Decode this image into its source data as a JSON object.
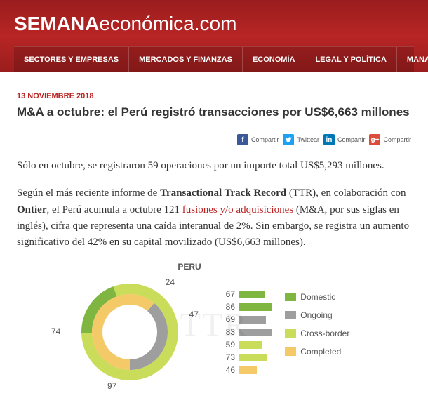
{
  "site": {
    "title_bold": "SEMANA",
    "title_light": "económica.com"
  },
  "nav": [
    "SECTORES Y EMPRESAS",
    "MERCADOS Y FINANZAS",
    "ECONOMÍA",
    "LEGAL Y POLÍTICA",
    "MANAGEMEN"
  ],
  "article": {
    "date": "13 NOVIEMBRE 2018",
    "headline": "M&A a octubre: el Perú registró transacciones por US$6,663 millones",
    "share": {
      "fb": "Compartir",
      "tw": "Twittear",
      "li": "Compartir",
      "gp": "Compartir"
    },
    "p1": "Sólo en octubre, se registraron 59 operaciones por un importe total US$5,293 millones.",
    "p2_a": "Según el más reciente informe de ",
    "p2_b": "Transactional Track Record",
    "p2_c": " (TTR), en colaboración con ",
    "p2_d": "Ontier",
    "p2_e": ", el Perú acumula a octubre 121 ",
    "p2_f": "fusiones y/o adquisiciones",
    "p2_g": " (M&A, por sus siglas en inglés), cifra que representa una caída interanual de 2%. Sin embargo, se registra un aumento significativo del 42% en su capital movilizado (US$6,663 millones)."
  },
  "chart": {
    "title": "PERU",
    "type": "donut",
    "watermark": "TTR",
    "colors": {
      "domestic": "#7fb642",
      "ongoing": "#9e9e9e",
      "crossborder": "#c9dd5a",
      "completed": "#f4c968",
      "bg": "#ffffff"
    },
    "outer_segments": [
      {
        "value": 97,
        "color": "#c9dd5a"
      },
      {
        "value": 24,
        "color": "#7fb642"
      }
    ],
    "inner_segments": [
      {
        "value": 74,
        "color": "#f4c968"
      },
      {
        "value": 47,
        "color": "#9e9e9e"
      }
    ],
    "callouts": {
      "tr": "24",
      "r": "47",
      "bl": "97",
      "l": "74"
    },
    "bars": [
      {
        "v": 67,
        "color": "#7fb642"
      },
      {
        "v": 86,
        "color": "#7fb642"
      },
      {
        "v": 69,
        "color": "#9e9e9e"
      },
      {
        "v": 83,
        "color": "#9e9e9e"
      },
      {
        "v": 59,
        "color": "#c9dd5a"
      },
      {
        "v": 73,
        "color": "#c9dd5a"
      },
      {
        "v": 46,
        "color": "#f4c968"
      }
    ],
    "bar_scale": 0.55,
    "legend": [
      {
        "label": "Domestic",
        "color": "#7fb642"
      },
      {
        "label": "Ongoing",
        "color": "#9e9e9e"
      },
      {
        "label": "Cross-border",
        "color": "#c9dd5a"
      },
      {
        "label": "Completed",
        "color": "#f4c968"
      }
    ]
  }
}
